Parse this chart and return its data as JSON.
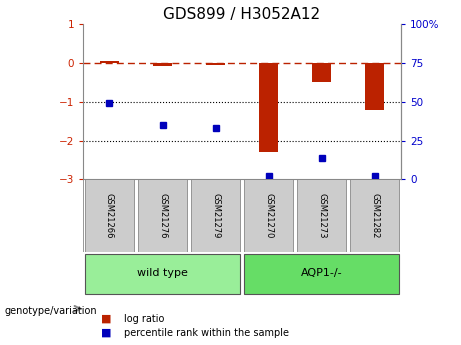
{
  "title": "GDS899 / H3052A12",
  "samples": [
    "GSM21266",
    "GSM21276",
    "GSM21279",
    "GSM21270",
    "GSM21273",
    "GSM21282"
  ],
  "log_ratio": [
    0.05,
    -0.08,
    -0.05,
    -2.3,
    -0.5,
    -1.2
  ],
  "percentile_rank": [
    49,
    35,
    33,
    2,
    14,
    2
  ],
  "groups": [
    {
      "label": "wild type",
      "indices": [
        0,
        1,
        2
      ],
      "color": "#99ee99"
    },
    {
      "label": "AQP1-/-",
      "indices": [
        3,
        4,
        5
      ],
      "color": "#66dd66"
    }
  ],
  "bar_color": "#bb2200",
  "dot_color": "#0000bb",
  "ylim_left": [
    -3,
    1
  ],
  "ylim_right": [
    0,
    100
  ],
  "yticks_left": [
    -3,
    -2,
    -1,
    0,
    1
  ],
  "yticks_right": [
    0,
    25,
    50,
    75,
    100
  ],
  "hline_y": 0,
  "dotted_lines": [
    -1,
    -2
  ],
  "title_fontsize": 11,
  "axis_label_color_left": "#cc2200",
  "axis_label_color_right": "#0000cc",
  "legend_items": [
    {
      "label": "log ratio",
      "color": "#bb2200"
    },
    {
      "label": "percentile rank within the sample",
      "color": "#0000bb"
    }
  ],
  "genotype_label": "genotype/variation",
  "sample_box_color": "#cccccc",
  "group_divider": 3
}
